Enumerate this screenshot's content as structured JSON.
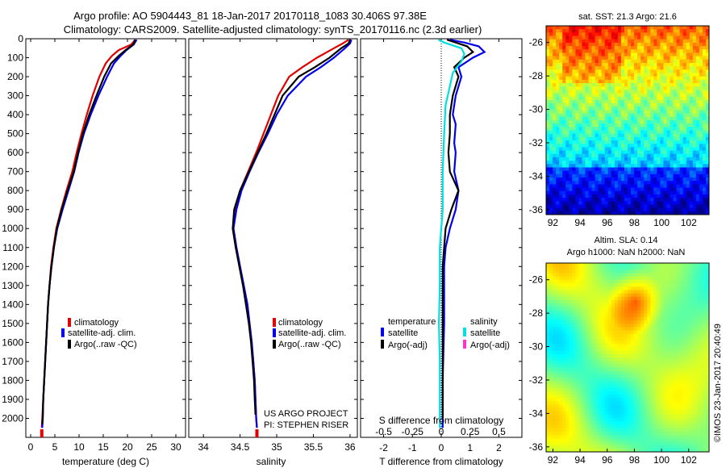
{
  "header": {
    "title_line1": "Argo profile: AO 5904443_81 18-Jan-2017 20170118_1083 30.406S 97.38E",
    "title_line2": "Climatology: CARS2009. Satellite-adjusted climatology: synTS_20170116.nc (2.3d earlier)"
  },
  "map_top": {
    "title": "sat. SST: 21.3 Argo: 21.6"
  },
  "map_bottom": {
    "title1": "Altim. SLA: 0.14",
    "title2": "Argo h1000: NaN h2000: NaN"
  },
  "credit": "©IMOS 23-Jan-2017 20:40:49",
  "project": {
    "line1": "US ARGO PROJECT",
    "line2": "PI: STEPHEN RISER"
  },
  "legend_left": {
    "items": [
      "climatology",
      "satellite-adj. clim.",
      "Argo(..raw -QC)"
    ],
    "colors": [
      "#e00000",
      "#0000ee",
      "#000000"
    ]
  },
  "legend_sal": {
    "items": [
      "climatology",
      "satellite-adj. clim.",
      "Argo(..raw -QC)"
    ]
  },
  "legend_diff": {
    "temp_header": "temperature",
    "sal_header": "salinity",
    "temp_items": [
      "satellite",
      "Argo(-adj)"
    ],
    "sal_items": [
      "satellite",
      "Argo(-adj)"
    ],
    "colors": {
      "temp_sat": "#0000ee",
      "temp_argo": "#000000",
      "sal_sat": "#00e0e0",
      "sal_argo": "#ff33cc"
    }
  },
  "chart_data": [
    {
      "type": "line",
      "xlabel": "temperature (deg C)",
      "ylabel": "",
      "xlim": [
        -1,
        32
      ],
      "ylim": [
        2100,
        0
      ],
      "xticks": [
        "0",
        "5",
        "10",
        "15",
        "20",
        "25",
        "30"
      ],
      "yticks": [
        "0",
        "100",
        "200",
        "300",
        "400",
        "500",
        "600",
        "700",
        "800",
        "900",
        "1000",
        "1100",
        "1200",
        "1300",
        "1400",
        "1500",
        "1600",
        "1700",
        "1800",
        "1900",
        "2000"
      ],
      "series": [
        {
          "name": "climatology",
          "color": "#e00000",
          "points": [
            [
              21.6,
              5
            ],
            [
              20.8,
              30
            ],
            [
              18.2,
              60
            ],
            [
              16.8,
              90
            ],
            [
              15.5,
              130
            ],
            [
              14.2,
              200
            ],
            [
              12.8,
              300
            ],
            [
              11.6,
              400
            ],
            [
              10.5,
              500
            ],
            [
              9.5,
              600
            ],
            [
              8.6,
              700
            ],
            [
              7.4,
              800
            ],
            [
              6.3,
              900
            ],
            [
              5.3,
              1000
            ],
            [
              4.7,
              1100
            ],
            [
              4.2,
              1200
            ],
            [
              3.9,
              1300
            ],
            [
              3.6,
              1400
            ],
            [
              3.4,
              1500
            ],
            [
              3.2,
              1600
            ],
            [
              3.0,
              1700
            ],
            [
              2.8,
              1800
            ],
            [
              2.6,
              1900
            ],
            [
              2.4,
              2000
            ],
            [
              2.3,
              2050
            ]
          ]
        },
        {
          "name": "satellite-adj. clim.",
          "color": "#0000ee",
          "points": [
            [
              21.9,
              5
            ],
            [
              21.3,
              30
            ],
            [
              19.8,
              60
            ],
            [
              18.6,
              90
            ],
            [
              17.2,
              130
            ],
            [
              15.8,
              200
            ],
            [
              14.0,
              300
            ],
            [
              12.4,
              400
            ],
            [
              11.0,
              500
            ],
            [
              9.9,
              600
            ],
            [
              9.0,
              700
            ],
            [
              7.8,
              800
            ],
            [
              6.6,
              900
            ],
            [
              5.5,
              1000
            ],
            [
              4.8,
              1100
            ],
            [
              4.3,
              1200
            ],
            [
              3.9,
              1300
            ],
            [
              3.6,
              1400
            ],
            [
              3.4,
              1500
            ],
            [
              3.2,
              1600
            ],
            [
              3.0,
              1700
            ],
            [
              2.8,
              1800
            ],
            [
              2.6,
              1900
            ],
            [
              2.5,
              2000
            ],
            [
              2.4,
              2050
            ]
          ]
        },
        {
          "name": "Argo(..raw -QC)",
          "color": "#000000",
          "points": [
            [
              21.6,
              5
            ],
            [
              21.2,
              30
            ],
            [
              19.6,
              60
            ],
            [
              18.2,
              90
            ],
            [
              16.6,
              130
            ],
            [
              15.2,
              200
            ],
            [
              13.6,
              300
            ],
            [
              12.1,
              400
            ],
            [
              10.8,
              500
            ],
            [
              9.8,
              600
            ],
            [
              8.9,
              700
            ],
            [
              7.6,
              800
            ],
            [
              6.4,
              900
            ],
            [
              5.4,
              1000
            ],
            [
              4.8,
              1100
            ],
            [
              4.3,
              1200
            ],
            [
              3.9,
              1300
            ],
            [
              3.6,
              1400
            ],
            [
              3.4,
              1500
            ],
            [
              3.2,
              1600
            ],
            [
              3.0,
              1700
            ],
            [
              2.8,
              1800
            ],
            [
              2.6,
              1900
            ],
            [
              2.5,
              2000
            ],
            [
              2.4,
              2030
            ]
          ]
        }
      ]
    },
    {
      "type": "line",
      "xlabel": "salinity",
      "xlim": [
        33.8,
        36.1
      ],
      "ylim": [
        2100,
        0
      ],
      "xticks": [
        "34",
        "34.5",
        "35",
        "35.5",
        "36"
      ],
      "series": [
        {
          "name": "climatology",
          "color": "#e00000",
          "points": [
            [
              35.98,
              5
            ],
            [
              35.9,
              25
            ],
            [
              35.78,
              50
            ],
            [
              35.55,
              100
            ],
            [
              35.35,
              150
            ],
            [
              35.17,
              200
            ],
            [
              35.02,
              300
            ],
            [
              34.92,
              400
            ],
            [
              34.82,
              500
            ],
            [
              34.72,
              600
            ],
            [
              34.61,
              700
            ],
            [
              34.5,
              800
            ],
            [
              34.44,
              900
            ],
            [
              34.41,
              1000
            ],
            [
              34.45,
              1100
            ],
            [
              34.5,
              1200
            ],
            [
              34.55,
              1300
            ],
            [
              34.6,
              1400
            ],
            [
              34.63,
              1500
            ],
            [
              34.66,
              1600
            ],
            [
              34.68,
              1700
            ],
            [
              34.7,
              1800
            ],
            [
              34.71,
              1900
            ],
            [
              34.72,
              2000
            ],
            [
              34.73,
              2050
            ]
          ]
        },
        {
          "name": "satellite-adj. clim.",
          "color": "#0000ee",
          "points": [
            [
              36.02,
              5
            ],
            [
              36.0,
              25
            ],
            [
              35.93,
              50
            ],
            [
              35.78,
              100
            ],
            [
              35.6,
              150
            ],
            [
              35.4,
              200
            ],
            [
              35.15,
              300
            ],
            [
              35.0,
              400
            ],
            [
              34.88,
              500
            ],
            [
              34.75,
              600
            ],
            [
              34.63,
              700
            ],
            [
              34.52,
              800
            ],
            [
              34.45,
              900
            ],
            [
              34.41,
              1000
            ],
            [
              34.45,
              1100
            ],
            [
              34.5,
              1200
            ],
            [
              34.55,
              1300
            ],
            [
              34.6,
              1400
            ],
            [
              34.63,
              1500
            ],
            [
              34.66,
              1600
            ],
            [
              34.68,
              1700
            ],
            [
              34.7,
              1800
            ],
            [
              34.71,
              1900
            ],
            [
              34.72,
              2000
            ],
            [
              34.73,
              2050
            ]
          ]
        },
        {
          "name": "Argo(..raw -QC)",
          "color": "#000000",
          "points": [
            [
              36.0,
              5
            ],
            [
              35.98,
              25
            ],
            [
              35.88,
              50
            ],
            [
              35.72,
              100
            ],
            [
              35.52,
              150
            ],
            [
              35.3,
              200
            ],
            [
              35.08,
              300
            ],
            [
              34.97,
              400
            ],
            [
              34.86,
              500
            ],
            [
              34.74,
              600
            ],
            [
              34.62,
              700
            ],
            [
              34.5,
              800
            ],
            [
              34.42,
              900
            ],
            [
              34.4,
              1000
            ],
            [
              34.44,
              1100
            ],
            [
              34.49,
              1200
            ],
            [
              34.54,
              1300
            ],
            [
              34.58,
              1400
            ],
            [
              34.62,
              1500
            ],
            [
              34.65,
              1600
            ],
            [
              34.67,
              1700
            ],
            [
              34.69,
              1800
            ],
            [
              34.7,
              1900
            ],
            [
              34.71,
              1980
            ]
          ]
        }
      ]
    },
    {
      "type": "line",
      "xlabel": "T difference from climatology",
      "xlabel_top": "S difference from climatology",
      "xlim": [
        -2.8,
        2.8
      ],
      "ylim": [
        2100,
        0
      ],
      "xticks": [
        "-2",
        "-1",
        "0",
        "1",
        "2"
      ],
      "xticks_top": [
        "-0.5",
        "-0.25",
        "0",
        "0.25",
        "0.5"
      ],
      "series": [
        {
          "name": "temperature satellite",
          "color": "#0000ee",
          "points": [
            [
              0.3,
              5
            ],
            [
              0.8,
              20
            ],
            [
              1.3,
              40
            ],
            [
              1.5,
              70
            ],
            [
              1.1,
              100
            ],
            [
              0.6,
              150
            ],
            [
              0.7,
              200
            ],
            [
              0.5,
              300
            ],
            [
              0.4,
              400
            ],
            [
              0.5,
              450
            ],
            [
              0.45,
              550
            ],
            [
              0.5,
              600
            ],
            [
              0.45,
              700
            ],
            [
              0.6,
              800
            ],
            [
              0.5,
              900
            ],
            [
              0.3,
              1000
            ],
            [
              0.15,
              1100
            ],
            [
              0.1,
              1200
            ],
            [
              0.1,
              1500
            ],
            [
              0.05,
              1800
            ],
            [
              0.05,
              2050
            ]
          ]
        },
        {
          "name": "temperature Argo(-adj)",
          "color": "#000000",
          "points": [
            [
              0.2,
              5
            ],
            [
              0.5,
              20
            ],
            [
              0.9,
              40
            ],
            [
              1.1,
              70
            ],
            [
              0.8,
              100
            ],
            [
              0.45,
              150
            ],
            [
              0.6,
              200
            ],
            [
              0.4,
              300
            ],
            [
              0.3,
              400
            ],
            [
              0.3,
              500
            ],
            [
              0.25,
              600
            ],
            [
              0.3,
              700
            ],
            [
              0.6,
              800
            ],
            [
              0.35,
              900
            ],
            [
              0.15,
              1000
            ],
            [
              0.1,
              1100
            ],
            [
              0.05,
              1200
            ],
            [
              0.05,
              1500
            ],
            [
              0.05,
              1800
            ],
            [
              0.05,
              2000
            ]
          ]
        },
        {
          "name": "salinity satellite",
          "color": "#00e0e0",
          "points": [
            [
              -0.1,
              5
            ],
            [
              0.1,
              20
            ],
            [
              0.7,
              50
            ],
            [
              0.8,
              80
            ],
            [
              0.7,
              120
            ],
            [
              0.4,
              180
            ],
            [
              0.3,
              250
            ],
            [
              0.15,
              350
            ],
            [
              0.1,
              500
            ],
            [
              0.05,
              700
            ],
            [
              0.05,
              900
            ],
            [
              0.0,
              1000
            ],
            [
              -0.05,
              1100
            ],
            [
              -0.05,
              1300
            ],
            [
              -0.08,
              1500
            ],
            [
              -0.05,
              1700
            ],
            [
              -0.05,
              1900
            ],
            [
              -0.05,
              2050
            ]
          ]
        }
      ]
    },
    {
      "type": "heatmap",
      "title": "sat. SST: 21.3 Argo: 21.6",
      "xlim": [
        91.5,
        103.5
      ],
      "ylim": [
        -36.3,
        -25
      ],
      "xticks": [
        "92",
        "94",
        "96",
        "98",
        "100",
        "102"
      ],
      "yticks": [
        "-26",
        "-28",
        "-30",
        "-32",
        "-34",
        "-36"
      ]
    },
    {
      "type": "heatmap",
      "title": "Altim. SLA: 0.14 / Argo h1000: NaN h2000: NaN",
      "xlim": [
        91.5,
        103.5
      ],
      "ylim": [
        -36.3,
        -25
      ],
      "xticks": [
        "92",
        "94",
        "96",
        "98",
        "100",
        "102"
      ],
      "yticks": [
        "-26",
        "-28",
        "-30",
        "-32",
        "-34",
        "-36"
      ]
    }
  ]
}
